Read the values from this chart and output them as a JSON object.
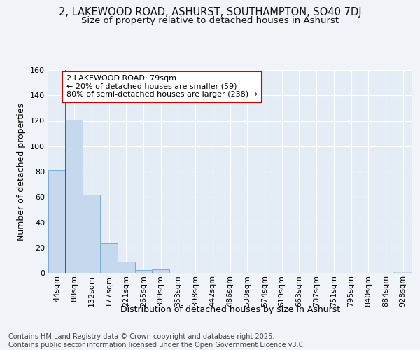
{
  "title": "2, LAKEWOOD ROAD, ASHURST, SOUTHAMPTON, SO40 7DJ",
  "subtitle": "Size of property relative to detached houses in Ashurst",
  "xlabel": "Distribution of detached houses by size in Ashurst",
  "ylabel": "Number of detached properties",
  "categories": [
    "44sqm",
    "88sqm",
    "132sqm",
    "177sqm",
    "221sqm",
    "265sqm",
    "309sqm",
    "353sqm",
    "398sqm",
    "442sqm",
    "486sqm",
    "530sqm",
    "574sqm",
    "619sqm",
    "663sqm",
    "707sqm",
    "751sqm",
    "795sqm",
    "840sqm",
    "884sqm",
    "928sqm"
  ],
  "values": [
    81,
    121,
    62,
    24,
    9,
    2,
    3,
    0,
    0,
    0,
    0,
    0,
    0,
    0,
    0,
    0,
    0,
    0,
    0,
    0,
    1
  ],
  "bar_color": "#c5d8ee",
  "bar_edge_color": "#7aadd4",
  "bg_color": "#f0f4f8",
  "plot_bg_color": "#e4ecf5",
  "grid_color": "#ffffff",
  "vline_color": "#cc0000",
  "annotation_text": "2 LAKEWOOD ROAD: 79sqm\n← 20% of detached houses are smaller (59)\n80% of semi-detached houses are larger (238) →",
  "annotation_box_edgecolor": "#cc0000",
  "ylim": [
    0,
    160
  ],
  "yticks": [
    0,
    20,
    40,
    60,
    80,
    100,
    120,
    140,
    160
  ],
  "footer": "Contains HM Land Registry data © Crown copyright and database right 2025.\nContains public sector information licensed under the Open Government Licence v3.0.",
  "title_fontsize": 10.5,
  "subtitle_fontsize": 9.5,
  "axis_label_fontsize": 9,
  "tick_fontsize": 8,
  "footer_fontsize": 7
}
